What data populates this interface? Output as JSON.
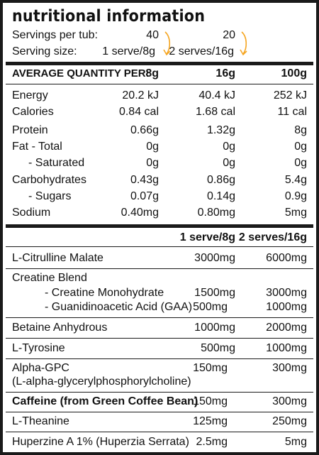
{
  "title": "nutritional information",
  "servings": {
    "per_tub_label": "Servings per tub:",
    "per_tub_values": [
      "40",
      "20"
    ],
    "size_label": "Serving size:",
    "size_values": [
      "1 serve/8g",
      "2 serves/16g"
    ],
    "arrow_color": "#f5a623"
  },
  "nutrition": {
    "headers": [
      "AVERAGE QUANTITY PER:",
      "8g",
      "16g",
      "100g"
    ],
    "rows": [
      [
        "Energy",
        "20.2 kJ",
        "40.4 kJ",
        "252 kJ"
      ],
      [
        "Calories",
        "0.84 cal",
        "1.68 cal",
        "11 cal"
      ],
      [
        "Protein",
        "0.66g",
        "1.32g",
        "8g"
      ],
      [
        "Fat - Total",
        "0g",
        "0g",
        "0g"
      ],
      [
        "- Saturated",
        "0g",
        "0g",
        "0g"
      ],
      [
        "Carbohydrates",
        "0.43g",
        "0.86g",
        "5.4g"
      ],
      [
        "- Sugars",
        "0.07g",
        "0.14g",
        "0.9g"
      ],
      [
        "Sodium",
        "0.40mg",
        "0.80mg",
        "5mg"
      ]
    ]
  },
  "ingredients": {
    "headers": [
      "1 serve/8g",
      "2 serves/16g"
    ],
    "l_citrulline": [
      "L-Citrulline Malate",
      "3000mg",
      "6000mg"
    ],
    "creatine_blend_label": "Creatine Blend",
    "creatine_mono": [
      "- Creatine Monohydrate",
      "1500mg",
      "3000mg"
    ],
    "gaa": [
      "- Guanidinoacetic Acid (GAA)",
      "500mg",
      "1000mg"
    ],
    "betaine": [
      "Betaine Anhydrous",
      "1000mg",
      "2000mg"
    ],
    "tyrosine": [
      "L-Tyrosine",
      "500mg",
      "1000mg"
    ],
    "alpha_gpc": [
      "Alpha-GPC",
      "150mg",
      "300mg"
    ],
    "alpha_gpc_sub": "(L-alpha-glycerylphosphorylcholine)",
    "caffeine": [
      "Caffeine (from Green Coffee Bean)",
      "150mg",
      "300mg"
    ],
    "theanine": [
      "L-Theanine",
      "125mg",
      "250mg"
    ],
    "huperzine": [
      "Huperzine A 1% (Huperzia Serrata)",
      "2.5mg",
      "5mg"
    ]
  }
}
